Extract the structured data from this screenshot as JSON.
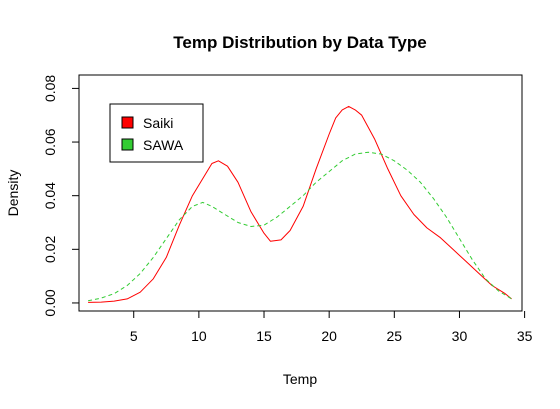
{
  "chart_data": {
    "type": "line",
    "title": "Temp Distribution by Data Type",
    "xlabel": "Temp",
    "ylabel": "Density",
    "xlim": [
      0.8,
      34.8
    ],
    "ylim": [
      -0.003,
      0.085
    ],
    "x_ticks": [
      5,
      10,
      15,
      20,
      25,
      30,
      35
    ],
    "y_ticks": [
      0.0,
      0.02,
      0.04,
      0.06,
      0.08
    ],
    "y_tick_labels": [
      "0.00",
      "0.02",
      "0.04",
      "0.06",
      "0.08"
    ],
    "grid": false,
    "legend_position": "top-left",
    "series": [
      {
        "name": "Saiki",
        "color": "#ff0000",
        "dash": "solid",
        "points": [
          [
            1.5,
            0.0002
          ],
          [
            2.5,
            0.0003
          ],
          [
            3.5,
            0.0007
          ],
          [
            4.5,
            0.0015
          ],
          [
            5.5,
            0.004
          ],
          [
            6.5,
            0.009
          ],
          [
            7.5,
            0.017
          ],
          [
            8.5,
            0.029
          ],
          [
            9.5,
            0.04
          ],
          [
            10.5,
            0.048
          ],
          [
            11.0,
            0.052
          ],
          [
            11.5,
            0.053
          ],
          [
            12.2,
            0.051
          ],
          [
            13.0,
            0.045
          ],
          [
            14.0,
            0.034
          ],
          [
            15.0,
            0.026
          ],
          [
            15.5,
            0.023
          ],
          [
            16.3,
            0.0235
          ],
          [
            17.0,
            0.027
          ],
          [
            18.0,
            0.036
          ],
          [
            19.0,
            0.05
          ],
          [
            20.0,
            0.063
          ],
          [
            20.5,
            0.069
          ],
          [
            21.0,
            0.072
          ],
          [
            21.5,
            0.0733
          ],
          [
            22.0,
            0.072
          ],
          [
            22.5,
            0.07
          ],
          [
            23.5,
            0.061
          ],
          [
            24.5,
            0.05
          ],
          [
            25.5,
            0.04
          ],
          [
            26.5,
            0.033
          ],
          [
            27.5,
            0.028
          ],
          [
            28.5,
            0.0245
          ],
          [
            29.5,
            0.02
          ],
          [
            30.5,
            0.0155
          ],
          [
            31.5,
            0.011
          ],
          [
            32.5,
            0.0065
          ],
          [
            33.5,
            0.0035
          ],
          [
            34.0,
            0.0015
          ]
        ]
      },
      {
        "name": "SAWA",
        "color": "#33cc33",
        "dash": "dashed",
        "points": [
          [
            1.5,
            0.0008
          ],
          [
            2.5,
            0.0018
          ],
          [
            3.5,
            0.0035
          ],
          [
            4.5,
            0.0065
          ],
          [
            5.5,
            0.011
          ],
          [
            6.5,
            0.017
          ],
          [
            7.5,
            0.024
          ],
          [
            8.5,
            0.031
          ],
          [
            9.5,
            0.036
          ],
          [
            10.3,
            0.0375
          ],
          [
            11.0,
            0.036
          ],
          [
            12.0,
            0.033
          ],
          [
            13.0,
            0.03
          ],
          [
            14.0,
            0.0285
          ],
          [
            15.0,
            0.029
          ],
          [
            16.0,
            0.032
          ],
          [
            17.0,
            0.036
          ],
          [
            18.0,
            0.04
          ],
          [
            19.0,
            0.045
          ],
          [
            20.0,
            0.049
          ],
          [
            21.0,
            0.053
          ],
          [
            22.0,
            0.0555
          ],
          [
            23.0,
            0.0562
          ],
          [
            24.0,
            0.0555
          ],
          [
            25.0,
            0.053
          ],
          [
            26.0,
            0.0495
          ],
          [
            27.0,
            0.045
          ],
          [
            28.0,
            0.039
          ],
          [
            29.0,
            0.032
          ],
          [
            30.0,
            0.024
          ],
          [
            31.0,
            0.016
          ],
          [
            32.0,
            0.009
          ],
          [
            33.0,
            0.0045
          ],
          [
            34.0,
            0.0015
          ]
        ]
      }
    ]
  }
}
